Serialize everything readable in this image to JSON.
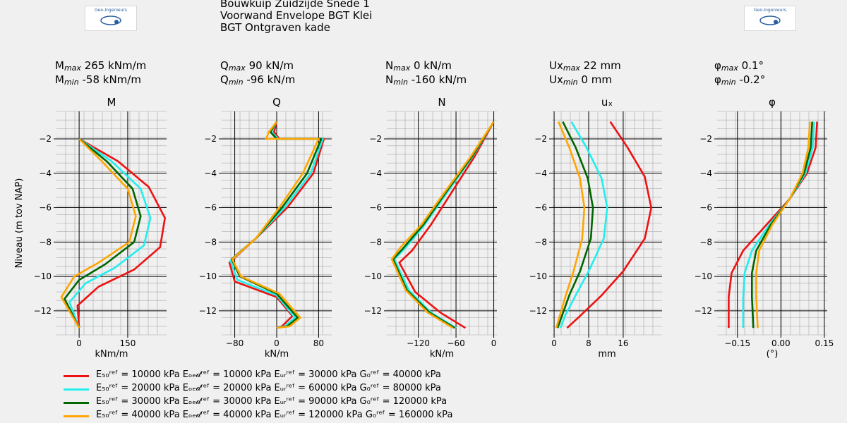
{
  "title_lines": [
    "Bouwkuip Zuidzijde Snede 1",
    "Voorwand Envelope BGT Klei",
    "BGT Ontgraven kade"
  ],
  "logo_text": "Geo-Ingenieurs",
  "colors": {
    "red": "#ee1111",
    "cyan": "#22eeee",
    "green": "#006600",
    "orange": "#ffa500"
  },
  "stats": [
    {
      "main": "M",
      "sub_max": "max",
      "sub_min": "min",
      "max_value": "265 kNm/m",
      "min_value": "-58 kNm/m"
    },
    {
      "main": "Q",
      "sub_max": "max",
      "sub_min": "min",
      "max_value": "90 kN/m",
      "min_value": "-96 kN/m"
    },
    {
      "main": "N",
      "sub_max": "max",
      "sub_min": "min",
      "max_value": "0 kN/m",
      "min_value": "-160 kN/m"
    },
    {
      "main": "Ux",
      "sub_max": "max",
      "sub_min": "min",
      "max_value": "22 mm",
      "min_value": "0 mm"
    },
    {
      "main": "φ",
      "sub_max": "max",
      "sub_min": "min",
      "max_value": "0.1°",
      "min_value": "-0.2°"
    }
  ],
  "chart_data": [
    {
      "type": "line",
      "title": "M",
      "xlabel": "kNm/m",
      "ylabel": "Niveau (m tov NAP)",
      "xlim": [
        -70,
        270
      ],
      "ylim": [
        -13.4,
        -0.4
      ],
      "xticks": [
        0,
        150
      ],
      "xtick_labels": [
        "0",
        "150"
      ],
      "yticks": [
        -2,
        -4,
        -6,
        -8,
        -10,
        -12
      ],
      "ytick_labels": [
        "−2",
        "−4",
        "−6",
        "−8",
        "−10",
        "−12"
      ],
      "series": [
        {
          "name": "E50ref = 10000 kPa",
          "color": "#ee1111",
          "x": [
            0,
            120,
            215,
            265,
            250,
            170,
            60,
            -5,
            0
          ],
          "y": [
            -2,
            -3.3,
            -4.8,
            -6.6,
            -8.3,
            -9.6,
            -10.6,
            -11.7,
            -13
          ]
        },
        {
          "name": "E50ref = 20000 kPa",
          "color": "#22eeee",
          "x": [
            0,
            100,
            190,
            220,
            200,
            110,
            20,
            -30,
            0
          ],
          "y": [
            -2,
            -3.3,
            -4.9,
            -6.6,
            -8.2,
            -9.5,
            -10.4,
            -11.5,
            -13
          ]
        },
        {
          "name": "E50ref = 30000 kPa",
          "color": "#006600",
          "x": [
            0,
            85,
            165,
            190,
            170,
            80,
            0,
            -45,
            0
          ],
          "y": [
            -2,
            -3.3,
            -4.9,
            -6.5,
            -8.0,
            -9.3,
            -10.2,
            -11.3,
            -13
          ]
        },
        {
          "name": "E50ref = 40000 kPa",
          "color": "#ffa500",
          "x": [
            0,
            70,
            150,
            175,
            155,
            60,
            -15,
            -55,
            0
          ],
          "y": [
            -2,
            -3.3,
            -4.9,
            -6.5,
            -8.0,
            -9.2,
            -10.0,
            -11.2,
            -13
          ]
        }
      ]
    },
    {
      "type": "line",
      "title": "Q",
      "xlabel": "kN/m",
      "ylabel": "",
      "xlim": [
        -105,
        105
      ],
      "ylim": [
        -13.4,
        -0.4
      ],
      "xticks": [
        -80,
        0,
        80
      ],
      "xtick_labels": [
        "−80",
        "0",
        "80"
      ],
      "yticks": [
        -2,
        -4,
        -6,
        -8,
        -10,
        -12
      ],
      "ytick_labels": [
        "−2",
        "−4",
        "−6",
        "−8",
        "−10",
        "−12"
      ],
      "series": [
        {
          "name": "E50ref = 10000 kPa",
          "color": "#ee1111",
          "x": [
            0,
            -5,
            5,
            90,
            70,
            20,
            -40,
            -90,
            -80,
            0,
            30,
            10,
            0
          ],
          "y": [
            -1,
            -1.6,
            -2,
            -2,
            -4,
            -6,
            -7.8,
            -9.2,
            -10.3,
            -11.2,
            -12.3,
            -12.9,
            -13
          ]
        },
        {
          "name": "E50ref = 20000 kPa",
          "color": "#22eeee",
          "x": [
            0,
            -10,
            3,
            88,
            65,
            15,
            -40,
            -88,
            -75,
            0,
            35,
            15,
            0
          ],
          "y": [
            -1,
            -1.6,
            -2,
            -2,
            -4,
            -6,
            -7.8,
            -9.1,
            -10.2,
            -11.1,
            -12.4,
            -12.9,
            -13
          ]
        },
        {
          "name": "E50ref = 30000 kPa",
          "color": "#006600",
          "x": [
            0,
            -12,
            0,
            85,
            58,
            10,
            -40,
            -86,
            -70,
            0,
            40,
            20,
            0
          ],
          "y": [
            -1,
            -1.6,
            -2,
            -2,
            -4,
            -6,
            -7.8,
            -9.0,
            -10.0,
            -11.0,
            -12.4,
            -12.9,
            -13
          ]
        },
        {
          "name": "E50ref = 40000 kPa",
          "color": "#ffa500",
          "x": [
            0,
            -15,
            -20,
            80,
            50,
            5,
            -40,
            -85,
            -68,
            5,
            45,
            25,
            0
          ],
          "y": [
            -1,
            -1.6,
            -2,
            -2,
            -4,
            -6,
            -7.8,
            -9.0,
            -10.0,
            -11.0,
            -12.4,
            -12.9,
            -13
          ]
        }
      ]
    },
    {
      "type": "line",
      "title": "N",
      "xlabel": "kN/m",
      "ylabel": "",
      "xlim": [
        -170,
        5
      ],
      "ylim": [
        -13.4,
        -0.4
      ],
      "xticks": [
        -120,
        -60,
        0
      ],
      "xtick_labels": [
        "−120",
        "−60",
        "0"
      ],
      "yticks": [
        -2,
        -4,
        -6,
        -8,
        -10,
        -12
      ],
      "ytick_labels": [
        "−2",
        "−4",
        "−6",
        "−8",
        "−10",
        "−12"
      ],
      "series": [
        {
          "name": "E50ref = 10000 kPa",
          "color": "#ee1111",
          "x": [
            0,
            -30,
            -65,
            -100,
            -130,
            -150,
            -125,
            -85,
            -45
          ],
          "y": [
            -1,
            -3,
            -5,
            -7,
            -8.5,
            -9.2,
            -10.9,
            -12.1,
            -13
          ]
        },
        {
          "name": "E50ref = 20000 kPa",
          "color": "#22eeee",
          "x": [
            0,
            -33,
            -72,
            -110,
            -142,
            -158,
            -135,
            -100,
            -60
          ],
          "y": [
            -1,
            -3,
            -5,
            -7,
            -8.4,
            -9.0,
            -10.8,
            -12.1,
            -13
          ]
        },
        {
          "name": "E50ref = 30000 kPa",
          "color": "#006600",
          "x": [
            0,
            -34,
            -74,
            -112,
            -145,
            -160,
            -138,
            -102,
            -62
          ],
          "y": [
            -1,
            -3,
            -5,
            -7,
            -8.4,
            -9.0,
            -10.8,
            -12.1,
            -13
          ]
        },
        {
          "name": "E50ref = 40000 kPa",
          "color": "#ffa500",
          "x": [
            0,
            -36,
            -76,
            -115,
            -148,
            -162,
            -140,
            -105,
            -65
          ],
          "y": [
            -1,
            -3,
            -5,
            -7,
            -8.3,
            -9.0,
            -10.8,
            -12.1,
            -13
          ]
        }
      ]
    },
    {
      "type": "line",
      "title": "uₓ",
      "xlabel": "mm",
      "ylabel": "",
      "xlim": [
        -0.5,
        25
      ],
      "ylim": [
        -13.4,
        -0.4
      ],
      "xticks": [
        0,
        8,
        16
      ],
      "xtick_labels": [
        "0",
        "8",
        "16"
      ],
      "yticks": [
        -2,
        -4,
        -6,
        -8,
        -10,
        -12
      ],
      "ytick_labels": [
        "−2",
        "−4",
        "−6",
        "−8",
        "−10",
        "−12"
      ],
      "series": [
        {
          "name": "E50ref = 10000 kPa",
          "color": "#ee1111",
          "x": [
            13,
            17,
            21,
            22.5,
            21,
            16,
            11,
            6,
            3
          ],
          "y": [
            -1,
            -2.5,
            -4.2,
            -6,
            -7.8,
            -9.7,
            -11.1,
            -12.3,
            -13
          ]
        },
        {
          "name": "E50ref = 20000 kPa",
          "color": "#22eeee",
          "x": [
            4,
            7.5,
            11,
            12.3,
            11.5,
            8,
            5,
            2.5,
            1.5
          ],
          "y": [
            -1,
            -2.5,
            -4.3,
            -6,
            -7.8,
            -9.7,
            -11.1,
            -12.3,
            -13
          ]
        },
        {
          "name": "E50ref = 30000 kPa",
          "color": "#006600",
          "x": [
            2,
            5,
            7.8,
            9,
            8.5,
            6,
            3.5,
            1.8,
            0.8
          ],
          "y": [
            -1,
            -2.5,
            -4.3,
            -6,
            -7.8,
            -9.7,
            -11.1,
            -12.3,
            -13
          ]
        },
        {
          "name": "E50ref = 40000 kPa",
          "color": "#ffa500",
          "x": [
            1,
            3.5,
            6,
            7,
            6.5,
            4.5,
            2.7,
            1.3,
            0.5
          ],
          "y": [
            -1,
            -2.5,
            -4.3,
            -6,
            -7.8,
            -9.7,
            -11.1,
            -12.3,
            -13
          ]
        }
      ]
    },
    {
      "type": "line",
      "title": "φ",
      "xlabel": "(°)",
      "ylabel": "",
      "xlim": [
        -0.22,
        0.16
      ],
      "ylim": [
        -13.4,
        -0.4
      ],
      "xticks": [
        -0.15,
        0.0,
        0.15
      ],
      "xtick_labels": [
        "−0.15",
        "0.00",
        "0.15"
      ],
      "yticks": [
        -2,
        -4,
        -6,
        -8,
        -10,
        -12
      ],
      "ytick_labels": [
        "−2",
        "−4",
        "−6",
        "−8",
        "−10",
        "−12"
      ],
      "series": [
        {
          "name": "E50ref = 10000 kPa",
          "color": "#ee1111",
          "x": [
            0.125,
            0.12,
            0.09,
            0.03,
            -0.05,
            -0.13,
            -0.17,
            -0.18,
            -0.18
          ],
          "y": [
            -1,
            -2.5,
            -4,
            -5.5,
            -7,
            -8.5,
            -9.8,
            -11.2,
            -13
          ]
        },
        {
          "name": "E50ref = 20000 kPa",
          "color": "#22eeee",
          "x": [
            0.115,
            0.11,
            0.085,
            0.03,
            -0.04,
            -0.1,
            -0.125,
            -0.13,
            -0.13
          ],
          "y": [
            -1,
            -2.5,
            -4,
            -5.5,
            -7,
            -8.5,
            -9.8,
            -11.2,
            -13
          ]
        },
        {
          "name": "E50ref = 30000 kPa",
          "color": "#006600",
          "x": [
            0.108,
            0.103,
            0.08,
            0.03,
            -0.035,
            -0.085,
            -0.1,
            -0.1,
            -0.095
          ],
          "y": [
            -1,
            -2.5,
            -4,
            -5.5,
            -7,
            -8.5,
            -9.8,
            -11.2,
            -13
          ]
        },
        {
          "name": "E50ref = 40000 kPa",
          "color": "#ffa500",
          "x": [
            0.1,
            0.095,
            0.075,
            0.03,
            -0.03,
            -0.075,
            -0.085,
            -0.085,
            -0.08
          ],
          "y": [
            -1,
            -2.5,
            -4,
            -5.5,
            -7,
            -8.5,
            -9.8,
            -11.2,
            -13
          ]
        }
      ]
    }
  ],
  "legend": [
    {
      "color": "#ee1111",
      "label": "E₅₀ʳᵉᶠ = 10000 kPa   Eₒₑ𝒹ʳᵉᶠ = 10000 kPa   Eᵤᵣʳᵉᶠ = 30000 kPa   G₀ʳᵉᶠ = 40000 kPa"
    },
    {
      "color": "#22eeee",
      "label": "E₅₀ʳᵉᶠ = 20000 kPa   Eₒₑ𝒹ʳᵉᶠ = 20000 kPa   Eᵤᵣʳᵉᶠ = 60000 kPa   G₀ʳᵉᶠ = 80000 kPa"
    },
    {
      "color": "#006600",
      "label": "E₅₀ʳᵉᶠ = 30000 kPa   Eₒₑ𝒹ʳᵉᶠ = 30000 kPa   Eᵤᵣʳᵉᶠ = 90000 kPa   G₀ʳᵉᶠ = 120000 kPa"
    },
    {
      "color": "#ffa500",
      "label": "E₅₀ʳᵉᶠ = 40000 kPa   Eₒₑ𝒹ʳᵉᶠ = 40000 kPa   Eᵤᵣʳᵉᶠ = 120000 kPa   G₀ʳᵉᶠ = 160000 kPa"
    }
  ]
}
